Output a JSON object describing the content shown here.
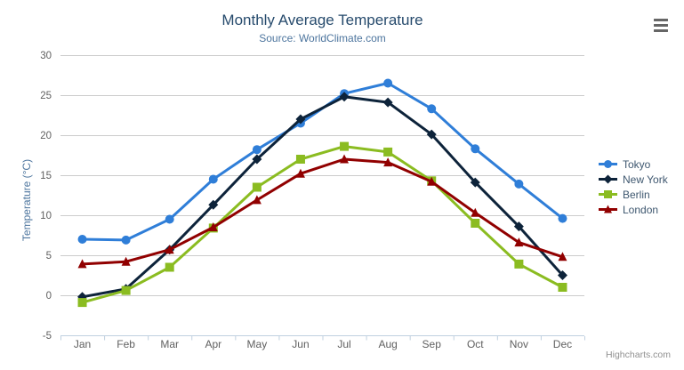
{
  "chart_data": {
    "type": "line",
    "title": "Monthly Average Temperature",
    "subtitle": "Source: WorldClimate.com",
    "categories": [
      "Jan",
      "Feb",
      "Mar",
      "Apr",
      "May",
      "Jun",
      "Jul",
      "Aug",
      "Sep",
      "Oct",
      "Nov",
      "Dec"
    ],
    "xlabel": "",
    "ylabel": "Temperature (°C)",
    "ylim": [
      -5,
      30
    ],
    "ytick_interval": 5,
    "grid": "horizontal",
    "legend_position": "right-middle",
    "series": [
      {
        "name": "Tokyo",
        "color": "#2f7ed8",
        "marker": "circle",
        "values": [
          7.0,
          6.9,
          9.5,
          14.5,
          18.2,
          21.5,
          25.2,
          26.5,
          23.3,
          18.3,
          13.9,
          9.6
        ]
      },
      {
        "name": "New York",
        "color": "#0d233a",
        "marker": "diamond",
        "values": [
          -0.2,
          0.8,
          5.7,
          11.3,
          17.0,
          22.0,
          24.8,
          24.1,
          20.1,
          14.1,
          8.6,
          2.5
        ]
      },
      {
        "name": "Berlin",
        "color": "#8bbc21",
        "marker": "square",
        "values": [
          -0.9,
          0.6,
          3.5,
          8.4,
          13.5,
          17.0,
          18.6,
          17.9,
          14.3,
          9.0,
          3.9,
          1.0
        ]
      },
      {
        "name": "London",
        "color": "#910000",
        "marker": "triangle",
        "values": [
          3.9,
          4.2,
          5.7,
          8.5,
          11.9,
          15.2,
          17.0,
          16.6,
          14.2,
          10.3,
          6.6,
          4.8
        ]
      }
    ]
  },
  "credits": {
    "label": "Highcharts.com"
  },
  "style": {
    "background": "#ffffff",
    "title_color": "#274b6d",
    "subtitle_color": "#4d759e",
    "axis_title_color": "#4d759e",
    "axis_label_color": "#606060",
    "axis_line_color": "#c0d0e0",
    "grid_color": "#cccccc",
    "legend_text_color": "#3e576f",
    "menu_icon_color": "#666666",
    "credits_color": "#909090"
  }
}
